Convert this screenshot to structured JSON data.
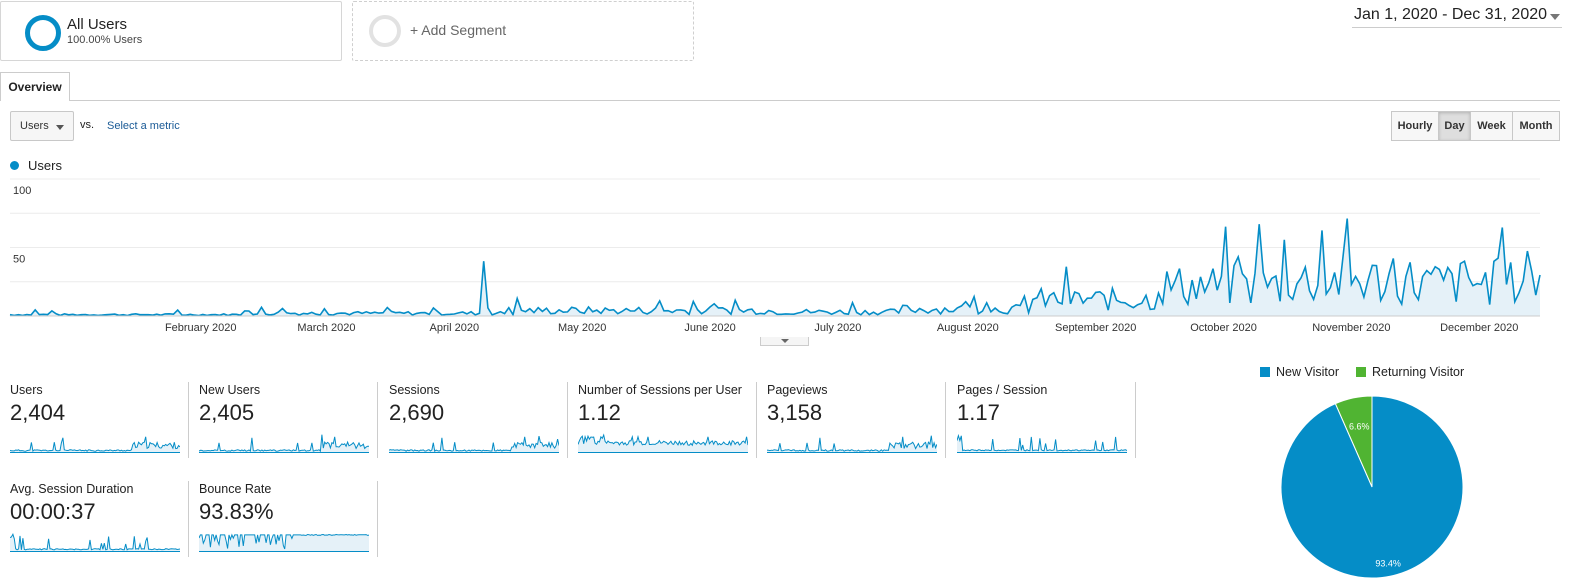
{
  "segments": {
    "all_users": {
      "name": "All Users",
      "sub": "100.00% Users"
    },
    "add_label": "+ Add Segment"
  },
  "date_range": "Jan 1, 2020 - Dec 31, 2020",
  "tabs": [
    {
      "label": "Overview"
    }
  ],
  "controls": {
    "metric": "Users",
    "vs": "vs.",
    "select_metric": "Select a metric",
    "periods": [
      "Hourly",
      "Day",
      "Week",
      "Month"
    ],
    "active_period": "Day"
  },
  "main_legend": "Users",
  "chart_data": {
    "type": "area",
    "series_name": "Users",
    "y_ticks": [
      {
        "value": 100,
        "label": "100"
      },
      {
        "value": 50,
        "label": "50"
      }
    ],
    "ylim": [
      0,
      100
    ],
    "x_labels": [
      "February 2020",
      "March 2020",
      "April 2020",
      "May 2020",
      "June 2020",
      "July 2020",
      "August 2020",
      "September 2020",
      "October 2020",
      "November 2020",
      "December 2020"
    ],
    "spikes": [
      {
        "date": "2020-04-23",
        "value": 40
      },
      {
        "date": "2020-10-25",
        "value": 67
      },
      {
        "date": "2020-11-26",
        "value": 42
      },
      {
        "date": "2020-12-13",
        "value": 40
      }
    ],
    "monthly_level": [
      1,
      1,
      2,
      2,
      4,
      4,
      3,
      5,
      12,
      22,
      26,
      24
    ],
    "accent": "#058dc7",
    "fill": "#e5f1f8",
    "grid": true
  },
  "metrics": [
    {
      "label": "Users",
      "value": "2,404"
    },
    {
      "label": "New Users",
      "value": "2,405"
    },
    {
      "label": "Sessions",
      "value": "2,690"
    },
    {
      "label": "Number of Sessions per User",
      "value": "1.12"
    },
    {
      "label": "Pageviews",
      "value": "3,158"
    },
    {
      "label": "Pages / Session",
      "value": "1.17"
    },
    {
      "label": "Avg. Session Duration",
      "value": "00:00:37"
    },
    {
      "label": "Bounce Rate",
      "value": "93.83%"
    }
  ],
  "pie": {
    "legend": [
      {
        "label": "New Visitor",
        "color": "#058dc7"
      },
      {
        "label": "Returning Visitor",
        "color": "#50b432"
      }
    ],
    "slices": [
      {
        "label": "New Visitor",
        "value": 93.4,
        "text": "93.4%",
        "color": "#058dc7"
      },
      {
        "label": "Returning Visitor",
        "value": 6.6,
        "text": "6.6%",
        "color": "#50b432"
      }
    ]
  }
}
